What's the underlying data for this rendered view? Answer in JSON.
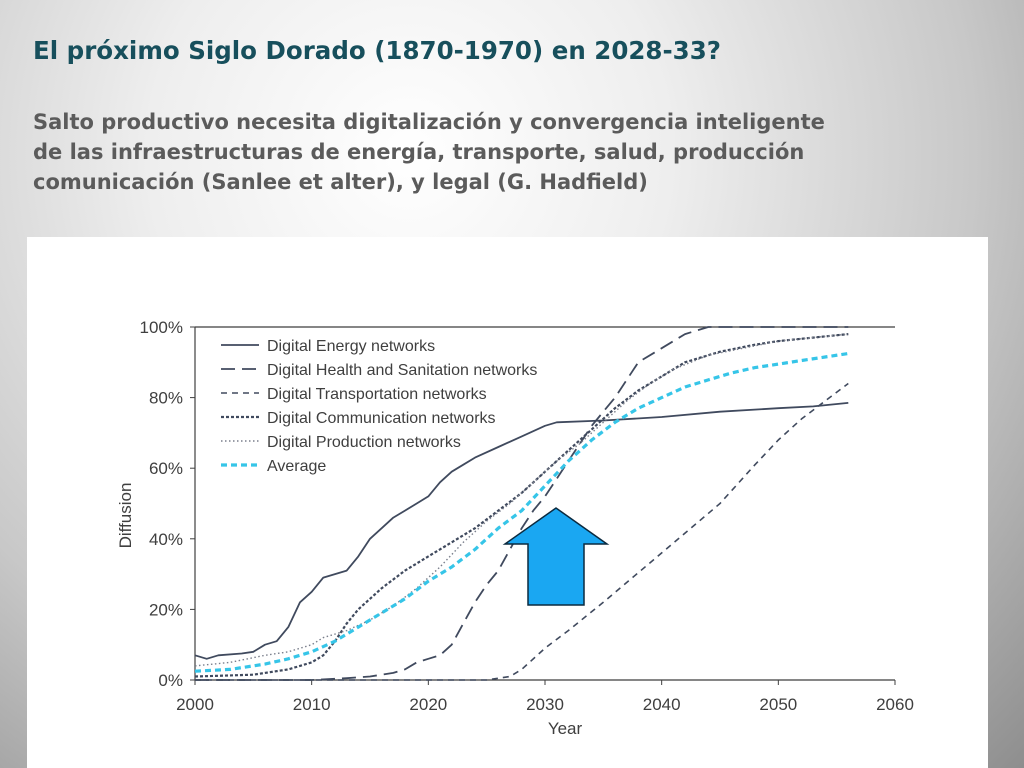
{
  "slide": {
    "title": "El próximo Siglo Dorado (1870-1970) en 2028-33?",
    "subtitle_lines": [
      "Salto productivo necesita digitalización y convergencia inteligente",
      "de las infraestructuras de energía, transporte, salud, producción",
      "comunicación (Sanlee et alter), y legal (G. Hadfield)"
    ]
  },
  "colors": {
    "title": "#174f5c",
    "subtitle": "#5b5b5b",
    "series_dark": "#404a5e",
    "average": "#36c5e8",
    "arrow_fill": "#1aa7f2",
    "arrow_stroke": "#0b2a3f"
  },
  "chart_data": {
    "type": "line",
    "xlabel": "Year",
    "ylabel": "Diffusion",
    "xlim": [
      2000,
      2060
    ],
    "ylim": [
      0,
      100
    ],
    "x_ticks": [
      2000,
      2010,
      2020,
      2030,
      2040,
      2050,
      2060
    ],
    "y_ticks": [
      "0%",
      "20%",
      "40%",
      "60%",
      "80%",
      "100%"
    ],
    "grid": false,
    "legend_position": "top-left",
    "annotation": "blue upward arrow near 2032",
    "series": [
      {
        "name": "Digital Energy networks",
        "style": "solid",
        "points": [
          [
            2000,
            7
          ],
          [
            2001,
            6
          ],
          [
            2002,
            7
          ],
          [
            2004,
            7.5
          ],
          [
            2005,
            8
          ],
          [
            2006,
            10
          ],
          [
            2007,
            11
          ],
          [
            2008,
            15
          ],
          [
            2009,
            22
          ],
          [
            2010,
            25
          ],
          [
            2011,
            29
          ],
          [
            2012,
            30
          ],
          [
            2013,
            31
          ],
          [
            2014,
            35
          ],
          [
            2015,
            40
          ],
          [
            2016,
            43
          ],
          [
            2017,
            46
          ],
          [
            2018,
            48
          ],
          [
            2019,
            50
          ],
          [
            2020,
            52
          ],
          [
            2021,
            56
          ],
          [
            2022,
            59
          ],
          [
            2023,
            61
          ],
          [
            2024,
            63
          ],
          [
            2026,
            66
          ],
          [
            2028,
            69
          ],
          [
            2030,
            72
          ],
          [
            2031,
            73
          ],
          [
            2035,
            73.5
          ],
          [
            2040,
            74.5
          ],
          [
            2045,
            76
          ],
          [
            2050,
            77
          ],
          [
            2053,
            77.5
          ],
          [
            2056,
            78.5
          ]
        ]
      },
      {
        "name": "Digital Health and Sanitation networks",
        "style": "long-dash",
        "points": [
          [
            2000,
            0
          ],
          [
            2010,
            0
          ],
          [
            2013,
            0.5
          ],
          [
            2015,
            1
          ],
          [
            2017,
            2
          ],
          [
            2018,
            3
          ],
          [
            2019,
            5
          ],
          [
            2020,
            6
          ],
          [
            2021,
            7
          ],
          [
            2022,
            10
          ],
          [
            2023,
            16
          ],
          [
            2024,
            22
          ],
          [
            2025,
            27
          ],
          [
            2026,
            31
          ],
          [
            2027,
            37
          ],
          [
            2028,
            43
          ],
          [
            2029,
            48
          ],
          [
            2030,
            52
          ],
          [
            2031,
            57
          ],
          [
            2032,
            62
          ],
          [
            2033,
            67
          ],
          [
            2034,
            72
          ],
          [
            2035,
            76
          ],
          [
            2036,
            80
          ],
          [
            2037,
            85
          ],
          [
            2038,
            90
          ],
          [
            2040,
            94
          ],
          [
            2042,
            98
          ],
          [
            2044,
            100
          ],
          [
            2050,
            100
          ],
          [
            2056,
            100
          ]
        ]
      },
      {
        "name": "Digital Transportation networks",
        "style": "short-dash",
        "points": [
          [
            2000,
            0
          ],
          [
            2025,
            0
          ],
          [
            2027,
            1
          ],
          [
            2028,
            3
          ],
          [
            2030,
            9
          ],
          [
            2032,
            14
          ],
          [
            2035,
            22
          ],
          [
            2040,
            36
          ],
          [
            2045,
            50
          ],
          [
            2048,
            61
          ],
          [
            2050,
            68
          ],
          [
            2052,
            74
          ],
          [
            2054,
            79
          ],
          [
            2056,
            84
          ]
        ]
      },
      {
        "name": "Digital Communication networks",
        "style": "dense-dash",
        "points": [
          [
            2000,
            1
          ],
          [
            2005,
            1.5
          ],
          [
            2008,
            3
          ],
          [
            2010,
            5
          ],
          [
            2011,
            7
          ],
          [
            2012,
            11
          ],
          [
            2013,
            16
          ],
          [
            2014,
            20
          ],
          [
            2015,
            23
          ],
          [
            2016,
            26
          ],
          [
            2018,
            31
          ],
          [
            2020,
            35
          ],
          [
            2022,
            39
          ],
          [
            2024,
            43
          ],
          [
            2026,
            48
          ],
          [
            2028,
            53
          ],
          [
            2030,
            59
          ],
          [
            2032,
            65
          ],
          [
            2034,
            71
          ],
          [
            2036,
            77
          ],
          [
            2038,
            82
          ],
          [
            2040,
            86
          ],
          [
            2042,
            90
          ],
          [
            2045,
            93
          ],
          [
            2048,
            95
          ],
          [
            2050,
            96
          ],
          [
            2053,
            97
          ],
          [
            2056,
            98
          ]
        ]
      },
      {
        "name": "Digital Production networks",
        "style": "dotted",
        "points": [
          [
            2000,
            4
          ],
          [
            2003,
            5
          ],
          [
            2006,
            7
          ],
          [
            2008,
            8
          ],
          [
            2010,
            10
          ],
          [
            2011,
            12
          ],
          [
            2013,
            14
          ],
          [
            2015,
            17
          ],
          [
            2017,
            21
          ],
          [
            2019,
            26
          ],
          [
            2021,
            32
          ],
          [
            2023,
            39
          ],
          [
            2025,
            45
          ],
          [
            2027,
            50
          ],
          [
            2029,
            56
          ],
          [
            2031,
            62
          ],
          [
            2033,
            67
          ],
          [
            2035,
            73
          ],
          [
            2037,
            79
          ],
          [
            2039,
            84
          ],
          [
            2041,
            88
          ],
          [
            2044,
            92
          ],
          [
            2047,
            94
          ],
          [
            2050,
            96
          ],
          [
            2053,
            97
          ],
          [
            2056,
            98
          ]
        ]
      },
      {
        "name": "Average",
        "style": "thick-dash",
        "points": [
          [
            2000,
            2.5
          ],
          [
            2003,
            3
          ],
          [
            2006,
            4.5
          ],
          [
            2008,
            6
          ],
          [
            2010,
            8
          ],
          [
            2012,
            11
          ],
          [
            2014,
            15
          ],
          [
            2016,
            19
          ],
          [
            2018,
            23
          ],
          [
            2020,
            28
          ],
          [
            2022,
            32
          ],
          [
            2024,
            37
          ],
          [
            2026,
            43
          ],
          [
            2028,
            48
          ],
          [
            2030,
            55
          ],
          [
            2032,
            62
          ],
          [
            2034,
            68
          ],
          [
            2036,
            73
          ],
          [
            2038,
            77
          ],
          [
            2040,
            80
          ],
          [
            2042,
            83
          ],
          [
            2044,
            85
          ],
          [
            2046,
            87
          ],
          [
            2048,
            88.5
          ],
          [
            2050,
            89.5
          ],
          [
            2052,
            90.5
          ],
          [
            2054,
            91.5
          ],
          [
            2056,
            92.5
          ]
        ]
      }
    ]
  }
}
